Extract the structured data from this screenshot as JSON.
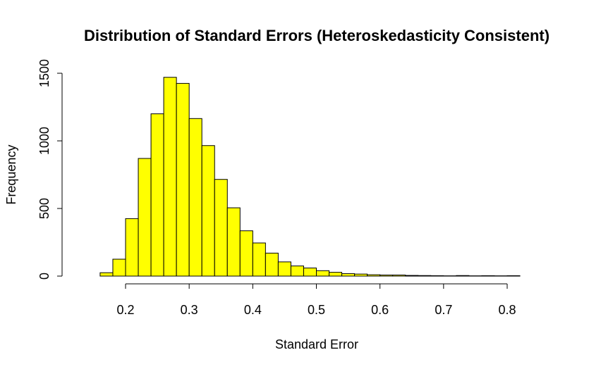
{
  "chart_data": {
    "type": "bar",
    "title": "Distribution of Standard Errors (Heteroskedasticity Consistent)",
    "xlabel": "Standard Error",
    "ylabel": "Frequency",
    "xlim": [
      0.15,
      0.85
    ],
    "ylim": [
      0,
      1500
    ],
    "x_ticks": [
      0.2,
      0.3,
      0.4,
      0.5,
      0.6,
      0.7,
      0.8
    ],
    "x_tick_labels": [
      "0.2",
      "0.3",
      "0.4",
      "0.5",
      "0.6",
      "0.7",
      "0.8"
    ],
    "y_ticks": [
      0,
      500,
      1000,
      1500
    ],
    "y_tick_labels": [
      "0",
      "500",
      "1000",
      "1500"
    ],
    "bar_color": "#ffff00",
    "border_color": "#000000",
    "grid": false,
    "bins": [
      {
        "start": 0.16,
        "end": 0.18,
        "count": 25
      },
      {
        "start": 0.18,
        "end": 0.2,
        "count": 125
      },
      {
        "start": 0.2,
        "end": 0.22,
        "count": 425
      },
      {
        "start": 0.22,
        "end": 0.24,
        "count": 870
      },
      {
        "start": 0.24,
        "end": 0.26,
        "count": 1200
      },
      {
        "start": 0.26,
        "end": 0.28,
        "count": 1470
      },
      {
        "start": 0.28,
        "end": 0.3,
        "count": 1425
      },
      {
        "start": 0.3,
        "end": 0.32,
        "count": 1165
      },
      {
        "start": 0.32,
        "end": 0.34,
        "count": 965
      },
      {
        "start": 0.34,
        "end": 0.36,
        "count": 715
      },
      {
        "start": 0.36,
        "end": 0.38,
        "count": 505
      },
      {
        "start": 0.38,
        "end": 0.4,
        "count": 335
      },
      {
        "start": 0.4,
        "end": 0.42,
        "count": 245
      },
      {
        "start": 0.42,
        "end": 0.44,
        "count": 170
      },
      {
        "start": 0.44,
        "end": 0.46,
        "count": 105
      },
      {
        "start": 0.46,
        "end": 0.48,
        "count": 75
      },
      {
        "start": 0.48,
        "end": 0.5,
        "count": 60
      },
      {
        "start": 0.5,
        "end": 0.52,
        "count": 40
      },
      {
        "start": 0.52,
        "end": 0.54,
        "count": 28
      },
      {
        "start": 0.54,
        "end": 0.56,
        "count": 18
      },
      {
        "start": 0.56,
        "end": 0.58,
        "count": 15
      },
      {
        "start": 0.58,
        "end": 0.6,
        "count": 10
      },
      {
        "start": 0.6,
        "end": 0.62,
        "count": 8
      },
      {
        "start": 0.62,
        "end": 0.64,
        "count": 8
      },
      {
        "start": 0.64,
        "end": 0.66,
        "count": 5
      },
      {
        "start": 0.66,
        "end": 0.68,
        "count": 4
      },
      {
        "start": 0.68,
        "end": 0.7,
        "count": 3
      },
      {
        "start": 0.7,
        "end": 0.72,
        "count": 2
      },
      {
        "start": 0.72,
        "end": 0.74,
        "count": 4
      },
      {
        "start": 0.74,
        "end": 0.76,
        "count": 2
      },
      {
        "start": 0.76,
        "end": 0.78,
        "count": 3
      },
      {
        "start": 0.78,
        "end": 0.8,
        "count": 2
      },
      {
        "start": 0.8,
        "end": 0.82,
        "count": 3
      }
    ]
  }
}
